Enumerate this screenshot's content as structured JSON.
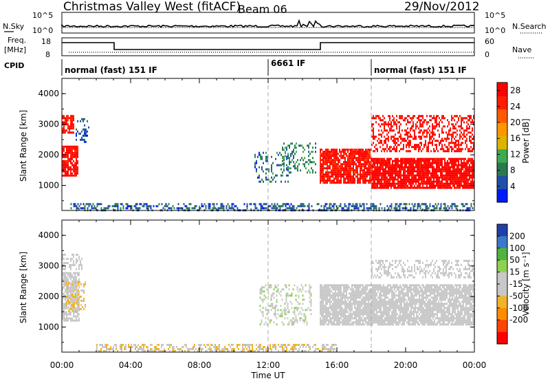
{
  "header": {
    "title": "Christmas Valley West (fitACF)",
    "beam": "Beam 06",
    "date": "29/Nov/2012"
  },
  "panels": {
    "nsky": {
      "left_label": "N.Sky",
      "left_ticks": [
        "10^5",
        "10^0"
      ],
      "right_label": "N.Search",
      "right_ticks": [
        "10^5",
        "10^0"
      ]
    },
    "freq": {
      "left_label_1": "Freq.",
      "left_label_2": "[MHz]",
      "left_ticks": [
        "18",
        "8"
      ],
      "right_label": "Nave",
      "right_ticks": [
        "60",
        "0"
      ]
    },
    "cpid": {
      "label": "CPID",
      "segments": [
        "normal (fast) 151 IF",
        "6661 IF",
        "normal (fast) 151 IF"
      ]
    }
  },
  "colors": {
    "power_scale": [
      "#0018ff",
      "#1e50a8",
      "#2c7850",
      "#3caa50",
      "#dcb400",
      "#ff9600",
      "#ff5a00",
      "#ff1e00",
      "#ff0000"
    ],
    "velocity_scale": [
      "#2040a8",
      "#3c78c8",
      "#50b43c",
      "#8cd250",
      "#c8c8c8",
      "#c8c8c8",
      "#f0b428",
      "#ff8c00",
      "#ff4600",
      "#ff0000"
    ]
  },
  "chart_data": [
    {
      "type": "heatmap",
      "name": "power-panel",
      "xlabel": "",
      "ylabel": "Slant Range [km]",
      "x_unit": "hours UT",
      "xlim": [
        0,
        24
      ],
      "ylim": [
        180,
        4500
      ],
      "yticks": [
        "1000",
        "2000",
        "3000",
        "4000"
      ],
      "xticks": [
        "00:00",
        "04:00",
        "08:00",
        "12:00",
        "16:00",
        "20:00",
        "00:00"
      ],
      "colorbar": {
        "label": "Power [dB]",
        "ticks": [
          "4",
          "8",
          "12",
          "16",
          "20",
          "24",
          "28"
        ],
        "range": [
          0,
          30
        ]
      },
      "scatter_regions": [
        {
          "x": [
            0.0,
            0.9
          ],
          "y": [
            1300,
            2300
          ],
          "value": 28,
          "density": 0.85
        },
        {
          "x": [
            0.0,
            0.7
          ],
          "y": [
            2700,
            3300
          ],
          "value": 27,
          "density": 0.75
        },
        {
          "x": [
            0.8,
            1.6
          ],
          "y": [
            2400,
            3200
          ],
          "value": 6,
          "density": 0.35
        },
        {
          "x": [
            11.2,
            13.2
          ],
          "y": [
            1100,
            2100
          ],
          "value": 7,
          "density": 0.25
        },
        {
          "x": [
            12.8,
            14.8
          ],
          "y": [
            1400,
            2400
          ],
          "value": 9,
          "density": 0.3
        },
        {
          "x": [
            15.0,
            18.0
          ],
          "y": [
            1100,
            2200
          ],
          "value": 27,
          "density": 0.85
        },
        {
          "x": [
            18.0,
            24.0
          ],
          "y": [
            900,
            1900
          ],
          "value": 29,
          "density": 0.9
        },
        {
          "x": [
            18.0,
            24.0
          ],
          "y": [
            2100,
            3300
          ],
          "value": 28,
          "density": 0.45
        },
        {
          "x": [
            0.5,
            24.0
          ],
          "y": [
            200,
            420
          ],
          "value": 6,
          "density": 0.45
        }
      ]
    },
    {
      "type": "heatmap",
      "name": "velocity-panel",
      "xlabel": "Time UT",
      "ylabel": "Slant Range [km]",
      "x_unit": "hours UT",
      "xlim": [
        0,
        24
      ],
      "ylim": [
        180,
        4500
      ],
      "yticks": [
        "1000",
        "2000",
        "3000",
        "4000"
      ],
      "xticks": [
        "00:00",
        "04:00",
        "08:00",
        "12:00",
        "16:00",
        "20:00",
        "00:00"
      ],
      "colorbar": {
        "label": "Velocity [m s⁻¹]",
        "ticks": [
          "200",
          "100",
          "50",
          "15",
          "-15",
          "-50",
          "-100",
          "-200"
        ],
        "range": [
          -250,
          250
        ]
      },
      "scatter_regions": [
        {
          "x": [
            0.0,
            1.0
          ],
          "y": [
            1200,
            2800
          ],
          "value": -5,
          "density": 0.8
        },
        {
          "x": [
            0.0,
            1.2
          ],
          "y": [
            2900,
            3400
          ],
          "value": -5,
          "density": 0.45
        },
        {
          "x": [
            0.2,
            1.4
          ],
          "y": [
            1500,
            2500
          ],
          "value": -60,
          "density": 0.35
        },
        {
          "x": [
            11.5,
            14.5
          ],
          "y": [
            1100,
            2400
          ],
          "value": 40,
          "density": 0.3
        },
        {
          "x": [
            15.0,
            24.0
          ],
          "y": [
            1100,
            2400
          ],
          "value": 0,
          "density": 0.85
        },
        {
          "x": [
            18.0,
            24.0
          ],
          "y": [
            2600,
            3200
          ],
          "value": 5,
          "density": 0.4
        },
        {
          "x": [
            2.0,
            16.0
          ],
          "y": [
            200,
            450
          ],
          "value": -45,
          "density": 0.5
        }
      ]
    }
  ]
}
